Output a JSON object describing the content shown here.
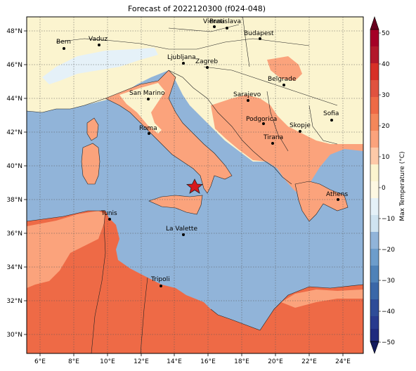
{
  "title": "Forecast of 2022120300 (f024-048)",
  "map": {
    "lon_ticks": [
      "6°E",
      "8°E",
      "10°E",
      "12°E",
      "14°E",
      "16°E",
      "18°E",
      "20°E",
      "22°E",
      "24°E"
    ],
    "lat_ticks": [
      "48°N",
      "46°N",
      "44°N",
      "42°N",
      "40°N",
      "38°N",
      "36°N",
      "34°N",
      "32°N",
      "30°N"
    ],
    "marker": {
      "type": "star",
      "color": "#d7191c"
    },
    "cities": [
      {
        "name": "Bern"
      },
      {
        "name": "Vaduz"
      },
      {
        "name": "Vienna"
      },
      {
        "name": "Bratislava"
      },
      {
        "name": "Budapest"
      },
      {
        "name": "Ljubljana"
      },
      {
        "name": "Zagreb"
      },
      {
        "name": "Belgrade"
      },
      {
        "name": "San Marino"
      },
      {
        "name": "Sarajevo"
      },
      {
        "name": "Sofia"
      },
      {
        "name": "Podgorica"
      },
      {
        "name": "Skopje"
      },
      {
        "name": "Roma"
      },
      {
        "name": "Tirana"
      },
      {
        "name": "Athens"
      },
      {
        "name": "Tunis"
      },
      {
        "name": "La Valette"
      },
      {
        "name": "Tripoli"
      }
    ]
  },
  "colorbar": {
    "label": "Max Temperature (°C)",
    "ticks": [
      "50",
      "40",
      "30",
      "20",
      "10",
      "0",
      "−10",
      "−20",
      "−30",
      "−40",
      "−50"
    ],
    "colors": {
      "sea": "#91b4d9",
      "land_cool": "#fbf4cf",
      "land_warm": "#fba37c",
      "land_hot": "#ee6a46",
      "alps": "#e5f1f8"
    }
  }
}
